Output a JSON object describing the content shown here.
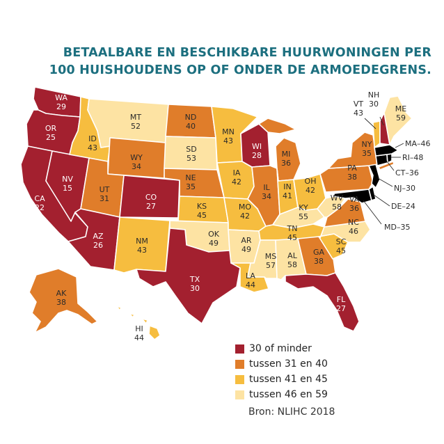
{
  "title": {
    "line1": "BETAALBARE EN BESCHIKBARE HUURWONINGEN PER",
    "line2": "100 HUISHOUDENS OP OF ONDER DE ARMOEDEGRENS."
  },
  "colors": {
    "c1": "#a3202f",
    "c2": "#e07d2a",
    "c3": "#f6bd3f",
    "c4": "#fde3a3",
    "title": "#1c6f7f"
  },
  "legend": [
    {
      "label": "30 of minder",
      "color": "#a3202f"
    },
    {
      "label": "tussen 31 en 40",
      "color": "#e07d2a"
    },
    {
      "label": "tussen 41 en 45",
      "color": "#f6bd3f"
    },
    {
      "label": "tussen 46 en 59",
      "color": "#fde3a3"
    }
  ],
  "source": "Bron: NLIHC 2018",
  "states": {
    "WA": {
      "abbr": "WA",
      "value": "29"
    },
    "OR": {
      "abbr": "OR",
      "value": "25"
    },
    "CA": {
      "abbr": "CA",
      "value": "22"
    },
    "NV": {
      "abbr": "NV",
      "value": "15"
    },
    "ID": {
      "abbr": "ID",
      "value": "43"
    },
    "MT": {
      "abbr": "MT",
      "value": "52"
    },
    "WY": {
      "abbr": "WY",
      "value": "34"
    },
    "UT": {
      "abbr": "UT",
      "value": "31"
    },
    "AZ": {
      "abbr": "AZ",
      "value": "26"
    },
    "CO": {
      "abbr": "CO",
      "value": "27"
    },
    "NM": {
      "abbr": "NM",
      "value": "43"
    },
    "ND": {
      "abbr": "ND",
      "value": "40"
    },
    "SD": {
      "abbr": "SD",
      "value": "53"
    },
    "NE": {
      "abbr": "NE",
      "value": "35"
    },
    "KS": {
      "abbr": "KS",
      "value": "45"
    },
    "OK": {
      "abbr": "OK",
      "value": "49"
    },
    "TX": {
      "abbr": "TX",
      "value": "30"
    },
    "MN": {
      "abbr": "MN",
      "value": "43"
    },
    "IA": {
      "abbr": "IA",
      "value": "42"
    },
    "MO": {
      "abbr": "MO",
      "value": "42"
    },
    "AR": {
      "abbr": "AR",
      "value": "49"
    },
    "LA": {
      "abbr": "LA",
      "value": "44"
    },
    "WI": {
      "abbr": "WI",
      "value": "28"
    },
    "IL": {
      "abbr": "IL",
      "value": "34"
    },
    "MS": {
      "abbr": "MS",
      "value": "57"
    },
    "MI": {
      "abbr": "MI",
      "value": "36"
    },
    "IN": {
      "abbr": "IN",
      "value": "41"
    },
    "OH": {
      "abbr": "OH",
      "value": "42"
    },
    "KY": {
      "abbr": "KY",
      "value": "55"
    },
    "TN": {
      "abbr": "TN",
      "value": "45"
    },
    "AL": {
      "abbr": "AL",
      "value": "58"
    },
    "GA": {
      "abbr": "GA",
      "value": "38"
    },
    "FL": {
      "abbr": "FL",
      "value": "27"
    },
    "SC": {
      "abbr": "SC",
      "value": "45"
    },
    "NC": {
      "abbr": "NC",
      "value": "46"
    },
    "VA": {
      "abbr": "VA",
      "value": "36"
    },
    "WV": {
      "abbr": "WV",
      "value": "58"
    },
    "PA": {
      "abbr": "PA",
      "value": "38"
    },
    "NY": {
      "abbr": "NY",
      "value": "35"
    },
    "VT": {
      "abbr": "VT",
      "value": "43"
    },
    "NH": {
      "abbr": "NH",
      "value": "30"
    },
    "ME": {
      "abbr": "ME",
      "value": "59"
    },
    "AK": {
      "abbr": "AK",
      "value": "38"
    },
    "HI": {
      "abbr": "HI",
      "value": "44"
    }
  },
  "callouts": {
    "MA": "MA–46",
    "RI": "RI–48",
    "CT": "CT–36",
    "NJ": "NJ–30",
    "DE": "DE–24",
    "MD": "MD–35"
  }
}
